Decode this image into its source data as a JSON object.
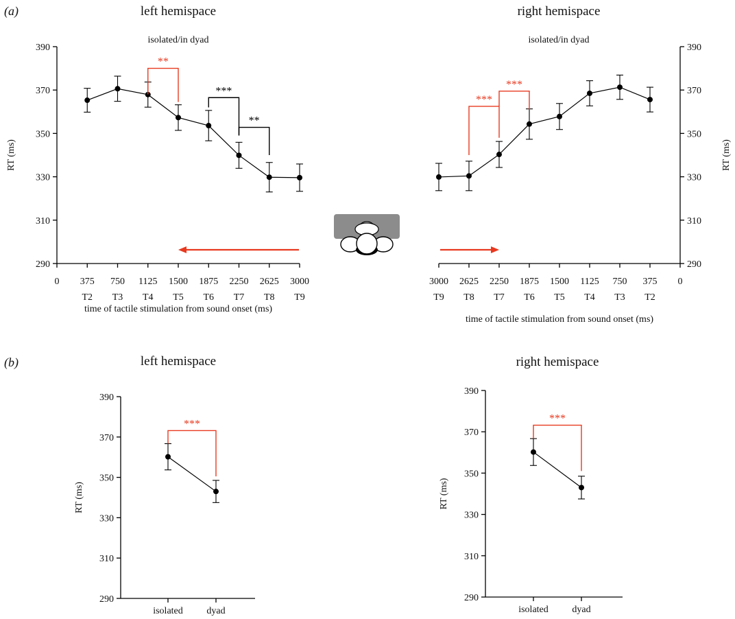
{
  "panel_labels": {
    "a": "(a)",
    "b": "(b)"
  },
  "colors": {
    "significant": "#e8391f",
    "ink": "#000000",
    "head_shape": "#8c8c8c"
  },
  "icons": {
    "head": "head-top-view-icon"
  },
  "chart_data": [
    {
      "type": "line",
      "title": "left hemispace",
      "subtitle": "isolated/in dyad",
      "xlabel": "time of tactile stimulation from sound onset (ms)",
      "ylabel": "RT (ms)",
      "ylim": [
        290,
        390
      ],
      "yticks": [
        290,
        310,
        330,
        350,
        370,
        390
      ],
      "xlim": [
        0,
        3000
      ],
      "x_reversed": false,
      "xticks": [
        0,
        375,
        750,
        1125,
        1500,
        1875,
        2250,
        2625,
        3000
      ],
      "xtick_labels": [
        "0",
        "375",
        "750",
        "1125",
        "1500",
        "1875",
        "2250",
        "2625",
        "3000"
      ],
      "xtick_sublabels": [
        "",
        "T2",
        "T3",
        "T4",
        "T5",
        "T6",
        "T7",
        "T8",
        "T9"
      ],
      "y_axis_side": "left",
      "arrow_direction": "left",
      "series": [
        {
          "x": [
            375,
            750,
            1125,
            1500,
            1875,
            2250,
            2625,
            3000
          ],
          "values": [
            365.3,
            370.6,
            367.9,
            357.3,
            353.6,
            339.9,
            329.8,
            329.6
          ],
          "err": [
            5.5,
            5.8,
            5.8,
            5.9,
            7.0,
            6.0,
            6.8,
            6.3
          ]
        }
      ],
      "annotations": [
        {
          "text": "**",
          "x1": 1125,
          "x2": 1500,
          "y": 380,
          "left_end": 368,
          "right_end": 364.5,
          "significant_color": true
        },
        {
          "text": "***",
          "x1": 1875,
          "x2": 2250,
          "y": 366.5,
          "left_end": 362,
          "right_end": 349,
          "significant_color": false
        },
        {
          "text": "**",
          "x1": 2250,
          "x2": 2625,
          "y": 352.8,
          "left_end": 349,
          "right_end": 340,
          "significant_color": false
        }
      ]
    },
    {
      "type": "line",
      "title": "right hemispace",
      "subtitle": "isolated/in dyad",
      "xlabel": "time of tactile stimulation from sound onset (ms)",
      "ylabel": "RT (ms)",
      "ylim": [
        290,
        390
      ],
      "yticks": [
        290,
        310,
        330,
        350,
        370,
        390
      ],
      "xlim": [
        0,
        3000
      ],
      "x_reversed": true,
      "xticks": [
        3000,
        2625,
        2250,
        1875,
        1500,
        1125,
        750,
        375,
        0
      ],
      "xtick_labels": [
        "3000",
        "2625",
        "2250",
        "1875",
        "1500",
        "1125",
        "750",
        "375",
        "0"
      ],
      "xtick_sublabels": [
        "T9",
        "T8",
        "T7",
        "T6",
        "T5",
        "T4",
        "T3",
        "T2",
        ""
      ],
      "y_axis_side": "right",
      "arrow_direction": "right",
      "series": [
        {
          "x": [
            3000,
            2625,
            2250,
            1875,
            1500,
            1125,
            750,
            375
          ],
          "values": [
            329.9,
            330.4,
            340.3,
            354.3,
            357.8,
            368.5,
            371.3,
            365.6
          ],
          "err": [
            6.3,
            6.8,
            6.0,
            7.0,
            6.0,
            5.8,
            5.6,
            5.7
          ]
        }
      ],
      "annotations": [
        {
          "text": "***",
          "x1": 2625,
          "x2": 2250,
          "y": 362.5,
          "left_end": 340,
          "right_end": 348,
          "significant_color": true
        },
        {
          "text": "***",
          "x1": 2250,
          "x2": 1875,
          "y": 369.5,
          "left_end": 362.5,
          "right_end": 361,
          "significant_color": true
        }
      ]
    },
    {
      "type": "line",
      "title": "left hemispace",
      "ylabel": "RT (ms)",
      "ylim": [
        290,
        390
      ],
      "yticks": [
        290,
        310,
        330,
        350,
        370,
        390
      ],
      "categories": [
        "isolated",
        "dyad"
      ],
      "series": [
        {
          "values": [
            360.2,
            343.0
          ],
          "err": [
            6.5,
            5.5
          ]
        }
      ],
      "annotations": [
        {
          "text": "***",
          "from": 0,
          "to": 1,
          "y": 373.2,
          "left_end": 366.7,
          "right_end": 350.5,
          "significant_color": true
        }
      ]
    },
    {
      "type": "line",
      "title": "right hemispace",
      "ylabel": "RT (ms)",
      "ylim": [
        290,
        390
      ],
      "yticks": [
        290,
        310,
        330,
        350,
        370,
        390
      ],
      "categories": [
        "isolated",
        "dyad"
      ],
      "series": [
        {
          "values": [
            360.2,
            343.0
          ],
          "err": [
            6.5,
            5.5
          ]
        }
      ],
      "annotations": [
        {
          "text": "***",
          "from": 0,
          "to": 1,
          "y": 373.2,
          "left_end": 366.7,
          "right_end": 351,
          "significant_color": true
        }
      ]
    }
  ]
}
